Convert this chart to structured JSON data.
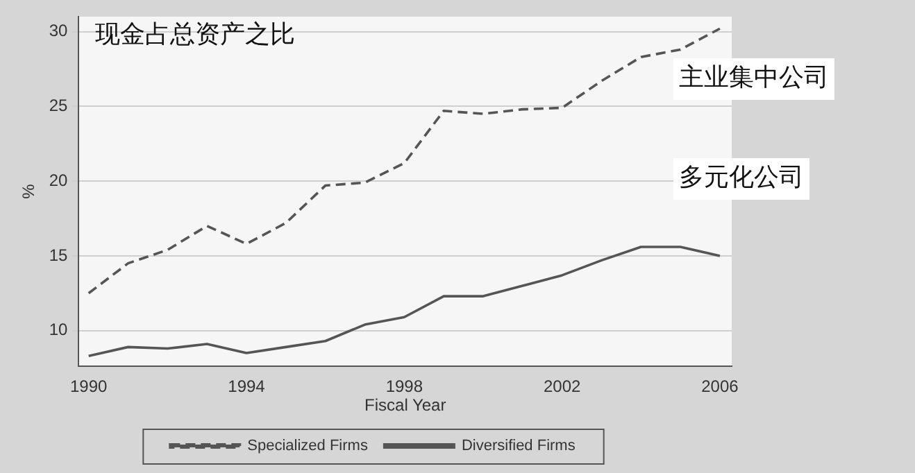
{
  "chart_data": {
    "type": "line",
    "annotations": [
      "现金占总资产之比",
      "主业集中公司",
      "多元化公司"
    ],
    "xlabel": "Fiscal Year",
    "ylabel": "%",
    "x": [
      1990,
      1991,
      1992,
      1993,
      1994,
      1995,
      1996,
      1997,
      1998,
      1999,
      2000,
      2001,
      2002,
      2003,
      2004,
      2005,
      2006
    ],
    "series": [
      {
        "name": "Specialized Firms",
        "color": "#555555",
        "line_style": "dashed",
        "values": [
          12.5,
          14.5,
          15.4,
          17.0,
          15.8,
          17.2,
          19.7,
          19.9,
          21.2,
          24.7,
          24.5,
          24.8,
          24.9,
          26.7,
          28.3,
          28.8,
          30.2
        ]
      },
      {
        "name": "Diversified Firms",
        "color": "#555555",
        "line_style": "solid",
        "values": [
          8.3,
          8.9,
          8.8,
          9.1,
          8.5,
          8.9,
          9.3,
          10.4,
          10.9,
          12.3,
          12.3,
          13.0,
          13.7,
          14.7,
          15.6,
          15.6,
          15.0
        ]
      }
    ],
    "xlim": [
      1989.75,
      2006.3
    ],
    "xticks": [
      1990,
      1994,
      1998,
      2002,
      2006
    ],
    "ylim": [
      7.6,
      31
    ],
    "yticks": [
      10,
      15,
      20,
      25,
      30
    ],
    "grid": "y",
    "legend": "bottom",
    "marker": "none"
  }
}
